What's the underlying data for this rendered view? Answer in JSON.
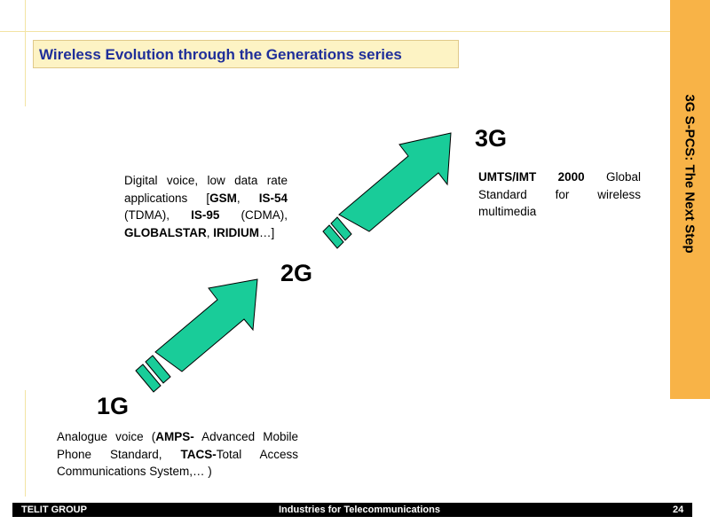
{
  "header": {
    "title": "Wireless Evolution through the Generations series"
  },
  "sidebar": {
    "label": "3G S-PCS: The Next Step"
  },
  "generations": {
    "g1": {
      "label": "1G",
      "desc": [
        {
          "t": "Analogue voice (",
          "b": false
        },
        {
          "t": "AMPS-",
          "b": true
        },
        {
          "t": " Advanced Mobile Phone Standard, ",
          "b": false
        },
        {
          "t": "TACS-",
          "b": true
        },
        {
          "t": "Total Access Communications System,… )",
          "b": false
        }
      ]
    },
    "g2": {
      "label": "2G",
      "desc": [
        {
          "t": "Digital voice, low data rate applications [",
          "b": false
        },
        {
          "t": "GSM",
          "b": true
        },
        {
          "t": ", ",
          "b": false
        },
        {
          "t": "IS-54",
          "b": true
        },
        {
          "t": " (TDMA), ",
          "b": false
        },
        {
          "t": "IS-95",
          "b": true
        },
        {
          "t": " (CDMA), ",
          "b": false
        },
        {
          "t": "GLOBALSTAR",
          "b": true
        },
        {
          "t": ", ",
          "b": false
        },
        {
          "t": "IRIDIUM",
          "b": true
        },
        {
          "t": "…]",
          "b": false
        }
      ]
    },
    "g3": {
      "label": "3G",
      "desc": [
        {
          "t": "UMTS/IMT 2000",
          "b": true
        },
        {
          "t": " Global Standard for wireless multimedia",
          "b": false
        }
      ]
    }
  },
  "footer": {
    "left": "TELIT GROUP",
    "center": "Industries for Telecommunications",
    "page": "24"
  },
  "colors": {
    "arrow_fill": "#19cc99",
    "title": "#1f2f9a",
    "band": "#f8b347",
    "guide": "#f3e3a3"
  }
}
